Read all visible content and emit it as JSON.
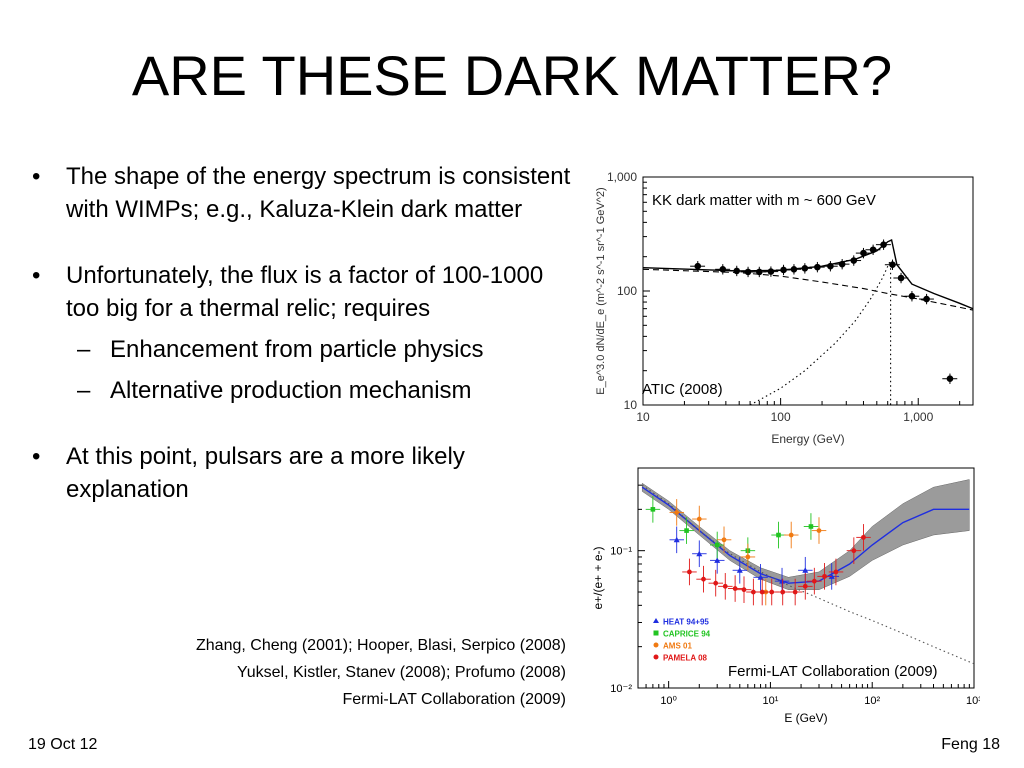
{
  "slide": {
    "title": "ARE THESE DARK MATTER?",
    "bullets": [
      {
        "text": "The shape of the energy spectrum is consistent with WIMPs; e.g., Kaluza-Klein dark matter"
      },
      {
        "text": "Unfortunately, the flux is a factor of 100-1000 too big for a thermal relic; requires"
      },
      {
        "text": "At this point, pulsars are a more likely explanation"
      }
    ],
    "sub_bullets": [
      "Enhancement from particle physics",
      "Alternative production mechanism"
    ],
    "bullet_symbol": "•",
    "dash_symbol": "–",
    "references": [
      "Zhang, Cheng (2001);  Hooper, Blasi, Serpico (2008)",
      "Yuksel, Kistler, Stanev (2008); Profumo (2008)",
      "Fermi-LAT Collaboration (2009)"
    ],
    "footer_left": "19 Oct 12",
    "footer_right": "Feng 18"
  },
  "chart_data": [
    {
      "type": "scatter",
      "annotation": "KK dark matter with m ~ 600 GeV",
      "caption": "ATIC (2008)",
      "xlabel": "Energy (GeV)",
      "ylabel": "E_e^3.0 dN/dE_e (m^-2 s^-1 sr^-1 GeV^2)",
      "x_scale": "log",
      "y_scale": "log",
      "xlim": [
        10,
        2500
      ],
      "ylim": [
        10,
        1000
      ],
      "x_ticks": [
        "10",
        "100",
        "1,000"
      ],
      "y_ticks": [
        "10",
        "100",
        "1,000"
      ],
      "points": [
        {
          "x": 25,
          "y": 165
        },
        {
          "x": 38,
          "y": 155
        },
        {
          "x": 48,
          "y": 150
        },
        {
          "x": 58,
          "y": 147
        },
        {
          "x": 70,
          "y": 147
        },
        {
          "x": 85,
          "y": 148
        },
        {
          "x": 105,
          "y": 153
        },
        {
          "x": 125,
          "y": 155
        },
        {
          "x": 150,
          "y": 158
        },
        {
          "x": 185,
          "y": 162
        },
        {
          "x": 230,
          "y": 165
        },
        {
          "x": 280,
          "y": 172
        },
        {
          "x": 340,
          "y": 185
        },
        {
          "x": 400,
          "y": 215
        },
        {
          "x": 470,
          "y": 230
        },
        {
          "x": 560,
          "y": 255
        },
        {
          "x": 650,
          "y": 170
        },
        {
          "x": 750,
          "y": 130
        },
        {
          "x": 900,
          "y": 90
        },
        {
          "x": 1150,
          "y": 85
        },
        {
          "x": 1700,
          "y": 17
        }
      ],
      "series": [
        {
          "name": "total",
          "style": "solid",
          "x": [
            10,
            50,
            100,
            200,
            350,
            500,
            600,
            640,
            700,
            900,
            1300,
            2000,
            2500
          ],
          "y": [
            160,
            150,
            152,
            165,
            190,
            225,
            270,
            280,
            170,
            115,
            95,
            78,
            70
          ]
        },
        {
          "name": "background",
          "style": "dashed",
          "x": [
            10,
            50,
            100,
            200,
            400,
            600,
            1000,
            2000,
            2500
          ],
          "y": [
            155,
            145,
            135,
            120,
            105,
            95,
            85,
            72,
            68
          ]
        },
        {
          "name": "KK signal",
          "style": "dotted",
          "x": [
            60,
            100,
            150,
            250,
            350,
            450,
            550,
            620,
            630,
            630
          ],
          "y": [
            10,
            14,
            20,
            35,
            55,
            85,
            130,
            180,
            180,
            10
          ]
        }
      ]
    },
    {
      "type": "scatter",
      "caption": "Fermi-LAT Collaboration (2009)",
      "xlabel": "E (GeV)",
      "ylabel": "e+/(e+ + e-)",
      "x_scale": "log",
      "y_scale": "log",
      "xlim": [
        0.5,
        1000
      ],
      "ylim": [
        0.01,
        0.4
      ],
      "x_ticks": [
        "10⁰",
        "10¹",
        "10²",
        "10³"
      ],
      "y_ticks": [
        "10⁻²",
        "10⁻¹"
      ],
      "legend": [
        {
          "name": "HEAT 94+95",
          "color": "#1f2ee0"
        },
        {
          "name": "CAPRICE 94",
          "color": "#22c422"
        },
        {
          "name": "AMS 01",
          "color": "#f07a12"
        },
        {
          "name": "PAMELA 08",
          "color": "#e01818"
        }
      ],
      "points": {
        "HEAT 94+95": [
          {
            "x": 1.2,
            "y": 0.12
          },
          {
            "x": 2.0,
            "y": 0.095
          },
          {
            "x": 3.0,
            "y": 0.085
          },
          {
            "x": 5.0,
            "y": 0.072
          },
          {
            "x": 8.0,
            "y": 0.064
          },
          {
            "x": 13,
            "y": 0.06
          },
          {
            "x": 22,
            "y": 0.072
          },
          {
            "x": 40,
            "y": 0.065
          }
        ],
        "CAPRICE 94": [
          {
            "x": 0.7,
            "y": 0.2
          },
          {
            "x": 1.5,
            "y": 0.14
          },
          {
            "x": 3.0,
            "y": 0.11
          },
          {
            "x": 6.0,
            "y": 0.1
          },
          {
            "x": 12,
            "y": 0.13
          },
          {
            "x": 25,
            "y": 0.15
          }
        ],
        "AMS 01": [
          {
            "x": 1.2,
            "y": 0.19
          },
          {
            "x": 2.0,
            "y": 0.17
          },
          {
            "x": 3.5,
            "y": 0.12
          },
          {
            "x": 6.0,
            "y": 0.09
          },
          {
            "x": 9.0,
            "y": 0.05
          },
          {
            "x": 16,
            "y": 0.13
          },
          {
            "x": 30,
            "y": 0.14
          }
        ],
        "PAMELA 08": [
          {
            "x": 1.6,
            "y": 0.07
          },
          {
            "x": 2.2,
            "y": 0.062
          },
          {
            "x": 2.9,
            "y": 0.058
          },
          {
            "x": 3.6,
            "y": 0.055
          },
          {
            "x": 4.5,
            "y": 0.053
          },
          {
            "x": 5.5,
            "y": 0.052
          },
          {
            "x": 6.8,
            "y": 0.05
          },
          {
            "x": 8.3,
            "y": 0.05
          },
          {
            "x": 10.3,
            "y": 0.05
          },
          {
            "x": 13.2,
            "y": 0.05
          },
          {
            "x": 17.5,
            "y": 0.05
          },
          {
            "x": 22,
            "y": 0.055
          },
          {
            "x": 27,
            "y": 0.06
          },
          {
            "x": 34,
            "y": 0.065
          },
          {
            "x": 44,
            "y": 0.07
          },
          {
            "x": 66,
            "y": 0.1
          },
          {
            "x": 82,
            "y": 0.125
          }
        ]
      },
      "series": [
        {
          "name": "band",
          "style": "band",
          "color": "#8a8a8a",
          "x": [
            0.55,
            1,
            2,
            4,
            8,
            15,
            30,
            60,
            100,
            200,
            400,
            900
          ],
          "lower": [
            0.27,
            0.2,
            0.13,
            0.085,
            0.062,
            0.052,
            0.052,
            0.065,
            0.085,
            0.11,
            0.13,
            0.14
          ],
          "upper": [
            0.31,
            0.23,
            0.15,
            0.1,
            0.075,
            0.064,
            0.07,
            0.1,
            0.15,
            0.22,
            0.29,
            0.33
          ]
        },
        {
          "name": "fit",
          "style": "solid",
          "color": "#1f2ee0",
          "x": [
            0.55,
            1,
            2,
            4,
            8,
            15,
            30,
            60,
            100,
            200,
            400,
            900
          ],
          "y": [
            0.29,
            0.215,
            0.14,
            0.092,
            0.068,
            0.058,
            0.06,
            0.08,
            0.11,
            0.16,
            0.2,
            0.2
          ]
        },
        {
          "name": "secondary",
          "style": "dotted",
          "color": "#555555",
          "x": [
            0.55,
            1,
            2,
            4,
            8,
            15,
            30,
            60,
            100,
            200,
            400,
            1000
          ],
          "y": [
            0.3,
            0.22,
            0.14,
            0.095,
            0.07,
            0.056,
            0.045,
            0.036,
            0.031,
            0.025,
            0.02,
            0.015
          ]
        }
      ]
    }
  ]
}
